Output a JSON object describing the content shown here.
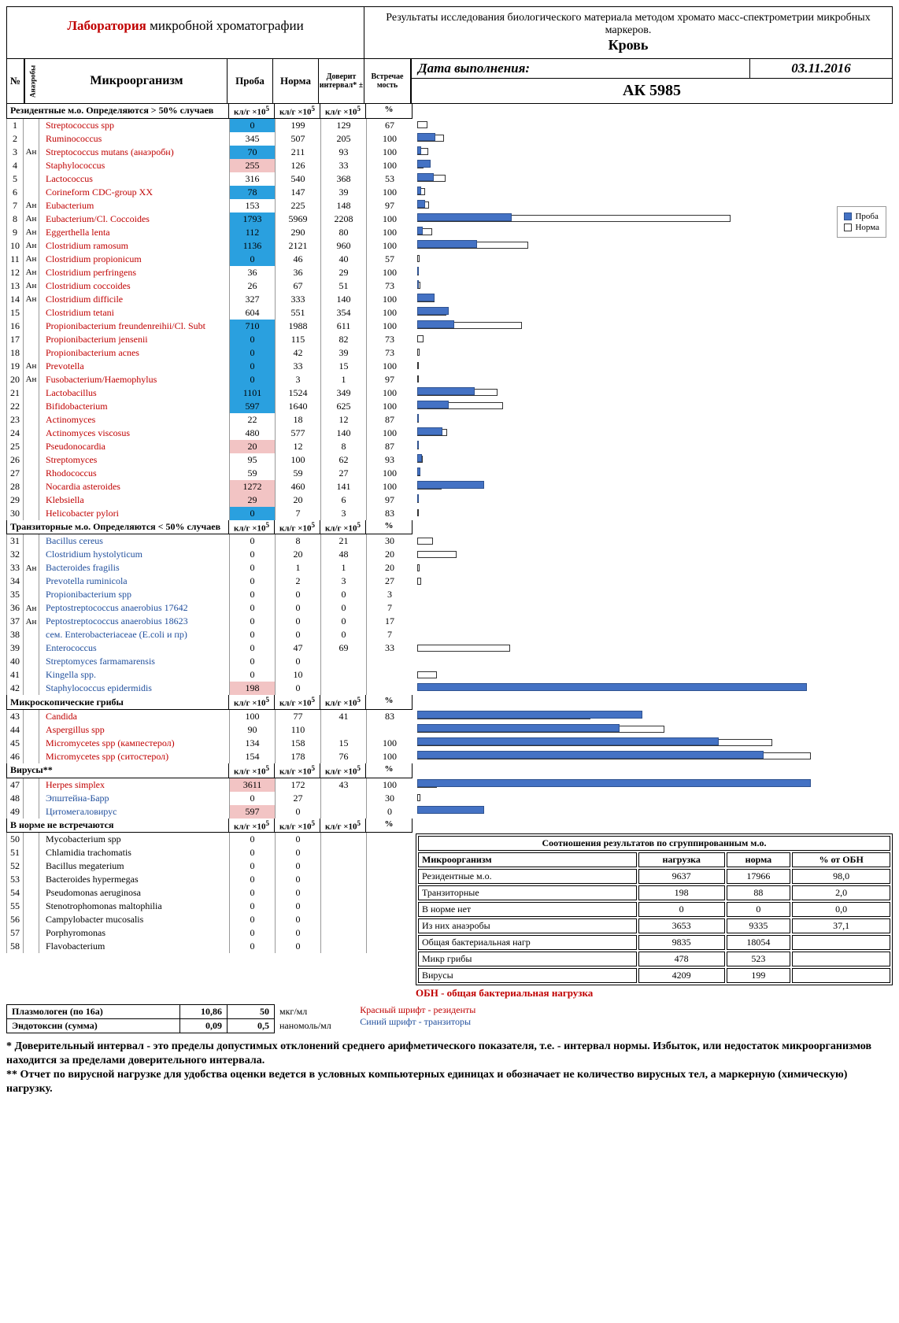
{
  "header": {
    "lab_word": "Лаборатория",
    "lab_rest": " микробной хроматографии",
    "title_line1": "Результаты исследования биологического материала методом хромато масс-спектрометрии микробных маркеров.",
    "sample_type": "Кровь",
    "date_label": "Дата выполнения:",
    "date_value": "03.11.2016",
    "sample_id": "АК 5985"
  },
  "columns": {
    "n": "№",
    "an": "Анаэробы",
    "name": "Микроорганизм",
    "proba": "Проба",
    "norma": "Норма",
    "interval": "Доверит интервал* ±",
    "vstrech": "Встречае мость",
    "unit_klg": "кл/г ×10⁵",
    "unit_pct": "%"
  },
  "sections": [
    {
      "label": "Резидентные м.о. Определяются > 50% случаев",
      "rows": [
        {
          "n": 1,
          "an": "",
          "name": "Streptococcus spp",
          "cls": "red",
          "p": 0,
          "no": 199,
          "di": 129,
          "vs": 67,
          "hl": "blue"
        },
        {
          "n": 2,
          "an": "",
          "name": "Ruminococcus",
          "cls": "red",
          "p": 345,
          "no": 507,
          "di": 205,
          "vs": 100
        },
        {
          "n": 3,
          "an": "Ан",
          "name": "Streptococcus mutans (анаэробн)",
          "cls": "red",
          "p": 70,
          "no": 211,
          "di": 93,
          "vs": 100,
          "hl": "blue"
        },
        {
          "n": 4,
          "an": "",
          "name": "Staphylococcus",
          "cls": "red",
          "p": 255,
          "no": 126,
          "di": 33,
          "vs": 100,
          "hl": "pink"
        },
        {
          "n": 5,
          "an": "",
          "name": "Lactococcus",
          "cls": "red",
          "p": 316,
          "no": 540,
          "di": 368,
          "vs": 53
        },
        {
          "n": 6,
          "an": "",
          "name": "Corineform CDC-group XX",
          "cls": "red",
          "p": 78,
          "no": 147,
          "di": 39,
          "vs": 100,
          "hl": "blue"
        },
        {
          "n": 7,
          "an": "Ан",
          "name": "Eubacterium",
          "cls": "red",
          "p": 153,
          "no": 225,
          "di": 148,
          "vs": 97
        },
        {
          "n": 8,
          "an": "Ан",
          "name": "Eubacterium/Cl. Coccoides",
          "cls": "red",
          "p": 1793,
          "no": 5969,
          "di": 2208,
          "vs": 100,
          "hl": "blue"
        },
        {
          "n": 9,
          "an": "Ан",
          "name": "Eggerthella lenta",
          "cls": "red",
          "p": 112,
          "no": 290,
          "di": 80,
          "vs": 100,
          "hl": "blue"
        },
        {
          "n": 10,
          "an": "Ан",
          "name": "Clostridium ramosum",
          "cls": "red",
          "p": 1136,
          "no": 2121,
          "di": 960,
          "vs": 100,
          "hl": "blue"
        },
        {
          "n": 11,
          "an": "Ан",
          "name": "Clostridium propionicum",
          "cls": "red",
          "p": 0,
          "no": 46,
          "di": 40,
          "vs": 57,
          "hl": "blue"
        },
        {
          "n": 12,
          "an": "Ан",
          "name": "Clostridium perfringens",
          "cls": "red",
          "p": 36,
          "no": 36,
          "di": 29,
          "vs": 100
        },
        {
          "n": 13,
          "an": "Ан",
          "name": "Clostridium coccoides",
          "cls": "red",
          "p": 26,
          "no": 67,
          "di": 51,
          "vs": 73
        },
        {
          "n": 14,
          "an": "Ан",
          "name": "Clostridium difficile",
          "cls": "red",
          "p": 327,
          "no": 333,
          "di": 140,
          "vs": 100
        },
        {
          "n": 15,
          "an": "",
          "name": "Clostridium tetani",
          "cls": "red",
          "p": 604,
          "no": 551,
          "di": 354,
          "vs": 100
        },
        {
          "n": 16,
          "an": "",
          "name": "Propionibacterium freundenreihii/Cl. Subt",
          "cls": "red",
          "p": 710,
          "no": 1988,
          "di": 611,
          "vs": 100,
          "hl": "blue"
        },
        {
          "n": 17,
          "an": "",
          "name": "Propionibacterium jensenii",
          "cls": "red",
          "p": 0,
          "no": 115,
          "di": 82,
          "vs": 73,
          "hl": "blue"
        },
        {
          "n": 18,
          "an": "",
          "name": "Propionibacterium acnes",
          "cls": "red",
          "p": 0,
          "no": 42,
          "di": 39,
          "vs": 73,
          "hl": "blue"
        },
        {
          "n": 19,
          "an": "Ан",
          "name": "Prevotella",
          "cls": "red",
          "p": 0,
          "no": 33,
          "di": 15,
          "vs": 100,
          "hl": "blue"
        },
        {
          "n": 20,
          "an": "Ан",
          "name": "Fusobacterium/Haemophylus",
          "cls": "red",
          "p": 0,
          "no": 3,
          "di": 1,
          "vs": 97,
          "hl": "blue"
        },
        {
          "n": 21,
          "an": "",
          "name": "Lactobacillus",
          "cls": "red",
          "p": 1101,
          "no": 1524,
          "di": 349,
          "vs": 100,
          "hl": "blue"
        },
        {
          "n": 22,
          "an": "",
          "name": "Bifidobacterium",
          "cls": "red",
          "p": 597,
          "no": 1640,
          "di": 625,
          "vs": 100,
          "hl": "blue"
        },
        {
          "n": 23,
          "an": "",
          "name": "Actinomyces",
          "cls": "red",
          "p": 22,
          "no": 18,
          "di": 12,
          "vs": 87
        },
        {
          "n": 24,
          "an": "",
          "name": "Actinomyces viscosus",
          "cls": "red",
          "p": 480,
          "no": 577,
          "di": 140,
          "vs": 100
        },
        {
          "n": 25,
          "an": "",
          "name": "Pseudonocardia",
          "cls": "red",
          "p": 20,
          "no": 12,
          "di": 8,
          "vs": 87,
          "hl": "pink"
        },
        {
          "n": 26,
          "an": "",
          "name": "Streptomyces",
          "cls": "red",
          "p": 95,
          "no": 100,
          "di": 62,
          "vs": 93
        },
        {
          "n": 27,
          "an": "",
          "name": "Rhodococcus",
          "cls": "red",
          "p": 59,
          "no": 59,
          "di": 27,
          "vs": 100
        },
        {
          "n": 28,
          "an": "",
          "name": "Nocardia asteroides",
          "cls": "red",
          "p": 1272,
          "no": 460,
          "di": 141,
          "vs": 100,
          "hl": "pink"
        },
        {
          "n": 29,
          "an": "",
          "name": "Klebsiella",
          "cls": "red",
          "p": 29,
          "no": 20,
          "di": 6,
          "vs": 97,
          "hl": "pink"
        },
        {
          "n": 30,
          "an": "",
          "name": "Helicobacter pylori",
          "cls": "red",
          "p": 0,
          "no": 7,
          "di": 3,
          "vs": 83,
          "hl": "blue"
        }
      ],
      "barScale": 15
    },
    {
      "label": "Транзиторные м.о. Определяются < 50% случаев",
      "rows": [
        {
          "n": 31,
          "an": "",
          "name": "Bacillus cereus",
          "cls": "blue",
          "p": 0,
          "no": 8,
          "di": 21,
          "vs": 30
        },
        {
          "n": 32,
          "an": "",
          "name": "Clostridium hystolyticum",
          "cls": "blue",
          "p": 0,
          "no": 20,
          "di": 48,
          "vs": 20
        },
        {
          "n": 33,
          "an": "Ан",
          "name": "Bacteroides fragilis",
          "cls": "blue",
          "p": 0,
          "no": 1,
          "di": 1,
          "vs": 20
        },
        {
          "n": 34,
          "an": "",
          "name": "Prevotella ruminicola",
          "cls": "blue",
          "p": 0,
          "no": 2,
          "di": 3,
          "vs": 27
        },
        {
          "n": 35,
          "an": "",
          "name": "Propionibacterium spp",
          "cls": "blue",
          "p": 0,
          "no": 0,
          "di": 0,
          "vs": 3
        },
        {
          "n": 36,
          "an": "Ан",
          "name": "Peptostreptococcus anaerobius 17642",
          "cls": "blue",
          "p": 0,
          "no": 0,
          "di": 0,
          "vs": 7
        },
        {
          "n": 37,
          "an": "Ан",
          "name": "Peptostreptococcus anaerobius 18623",
          "cls": "blue",
          "p": 0,
          "no": 0,
          "di": 0,
          "vs": 17
        },
        {
          "n": 38,
          "an": "",
          "name": "сем. Enterobacteriaceae (E.coli и пр)",
          "cls": "blue",
          "p": 0,
          "no": 0,
          "di": 0,
          "vs": 7
        },
        {
          "n": 39,
          "an": "",
          "name": "Enterococcus",
          "cls": "blue",
          "p": 0,
          "no": 47,
          "di": 69,
          "vs": 33
        },
        {
          "n": 40,
          "an": "",
          "name": "Streptomyces farmamarensis",
          "cls": "blue",
          "p": 0,
          "no": 0,
          "di": "",
          "vs": ""
        },
        {
          "n": 41,
          "an": "",
          "name": "Kingella spp.",
          "cls": "blue",
          "p": 0,
          "no": 10,
          "di": "",
          "vs": ""
        },
        {
          "n": 42,
          "an": "",
          "name": "Staphylococcus epidermidis",
          "cls": "blue",
          "p": 198,
          "no": 0,
          "di": "",
          "vs": "",
          "hl": "pink"
        }
      ],
      "barScale": 0.4
    },
    {
      "label": "Микроскопические грибы",
      "rows": [
        {
          "n": 43,
          "an": "",
          "name": "Candida",
          "cls": "red",
          "p": 100,
          "no": 77,
          "di": 41,
          "vs": 83
        },
        {
          "n": 44,
          "an": "",
          "name": "Aspergillus spp",
          "cls": "red",
          "p": 90,
          "no": 110,
          "di": "",
          "vs": ""
        },
        {
          "n": 45,
          "an": "",
          "name": "Micromycetes spp (кампестерол)",
          "cls": "red",
          "p": 134,
          "no": 158,
          "di": 15,
          "vs": 100
        },
        {
          "n": 46,
          "an": "",
          "name": "Micromycetes spp (ситостерол)",
          "cls": "red",
          "p": 154,
          "no": 178,
          "di": 76,
          "vs": 100
        }
      ],
      "barScale": 0.35
    },
    {
      "label": "Вирусы**",
      "rows": [
        {
          "n": 47,
          "an": "",
          "name": "Herpes simplex",
          "cls": "red",
          "p": 3611,
          "no": 172,
          "di": 43,
          "vs": 100,
          "hl": "pink"
        },
        {
          "n": 48,
          "an": "",
          "name": "Эпштейна-Барр",
          "cls": "blue",
          "p": 0,
          "no": 27,
          "di": "",
          "vs": 30
        },
        {
          "n": 49,
          "an": "",
          "name": "Цитомегаловирус",
          "cls": "blue",
          "p": 597,
          "no": 0,
          "di": "",
          "vs": 0,
          "hl": "pink"
        }
      ],
      "barScale": 7
    },
    {
      "label": "В норме не встречаются",
      "rows": [
        {
          "n": 50,
          "an": "",
          "name": "Mycobacterium spp",
          "cls": "",
          "p": 0,
          "no": 0,
          "di": "",
          "vs": ""
        },
        {
          "n": 51,
          "an": "",
          "name": "Chlamidia trachomatis",
          "cls": "",
          "p": 0,
          "no": 0,
          "di": "",
          "vs": ""
        },
        {
          "n": 52,
          "an": "",
          "name": "Bacillus megaterium",
          "cls": "",
          "p": 0,
          "no": 0,
          "di": "",
          "vs": ""
        },
        {
          "n": 53,
          "an": "",
          "name": "Bacteroides hypermegas",
          "cls": "",
          "p": 0,
          "no": 0,
          "di": "",
          "vs": ""
        },
        {
          "n": 54,
          "an": "",
          "name": "Pseudomonas aeruginosa",
          "cls": "",
          "p": 0,
          "no": 0,
          "di": "",
          "vs": ""
        },
        {
          "n": 55,
          "an": "",
          "name": "Stenotrophomonas maltophilia",
          "cls": "",
          "p": 0,
          "no": 0,
          "di": "",
          "vs": ""
        },
        {
          "n": 56,
          "an": "",
          "name": "Campylobacter mucosalis",
          "cls": "",
          "p": 0,
          "no": 0,
          "di": "",
          "vs": ""
        },
        {
          "n": 57,
          "an": "",
          "name": "Porphyromonas",
          "cls": "",
          "p": 0,
          "no": 0,
          "di": "",
          "vs": ""
        },
        {
          "n": 58,
          "an": "",
          "name": "Flavobacterium",
          "cls": "",
          "p": 0,
          "no": 0,
          "di": "",
          "vs": ""
        }
      ],
      "barScale": 1,
      "noBars": true
    }
  ],
  "legend": {
    "proba": "Проба",
    "norma": "Норма"
  },
  "summary": {
    "title": "Соотношения результатов по сгруппированным м.о.",
    "headers": [
      "Микроорганизм",
      "нагрузка",
      "норма",
      "% от ОБН"
    ],
    "rows": [
      [
        "Резидентные м.о.",
        "9637",
        "17966",
        "98,0"
      ],
      [
        "Транзиторные",
        "198",
        "88",
        "2,0"
      ],
      [
        "В норме нет",
        "0",
        "0",
        "0,0"
      ],
      [
        "Из них анаэробы",
        "3653",
        "9335",
        "37,1"
      ],
      [
        "Общая бактериальная нагр",
        "9835",
        "18054",
        ""
      ],
      [
        "Микр грибы",
        "478",
        "523",
        ""
      ],
      [
        "Вирусы",
        "4209",
        "199",
        ""
      ]
    ],
    "obn": "ОБН - общая бактериальная нагрузка",
    "red_note": "Красный шрифт - резиденты",
    "blue_note": "Синий шрифт - транзиторы"
  },
  "plasm": [
    {
      "lbl": "Плазмологен (по 16а)",
      "v": "10,86",
      "n": "50",
      "u": "мкг/мл"
    },
    {
      "lbl": "Эндотоксин (сумма)",
      "v": "0,09",
      "n": "0,5",
      "u": "наномоль/мл"
    }
  ],
  "footnotes": [
    "* Доверительный интервал - это  пределы допустимых отклонений среднего арифметического показателя, т.е. - интервал нормы. Избыток, или недостаток микроорганизмов находится за пределами доверительного интервала.",
    "** Отчет по вирусной нагрузке для удобства оценки ведется в условных компьютерных единицах и обозначает не количество вирусных тел, а маркерную (химическую) нагрузку."
  ]
}
